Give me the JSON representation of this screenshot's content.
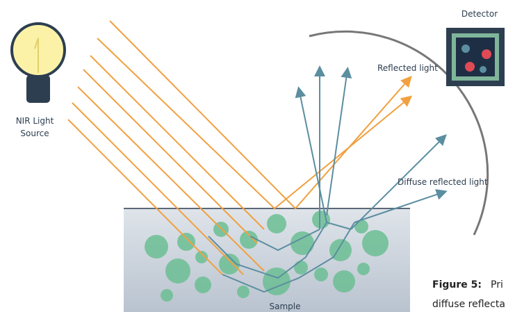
{
  "labels": {
    "detector": "Detector",
    "reflected": "Reflected light",
    "source_line1": "NIR Light",
    "source_line2": "Source",
    "diffuse": "Diffuse reflected light",
    "sample": "Sample"
  },
  "caption": {
    "label": "Figure 5:",
    "text_line1": "Pri",
    "text_line2": "diffuse reflecta"
  }
}
